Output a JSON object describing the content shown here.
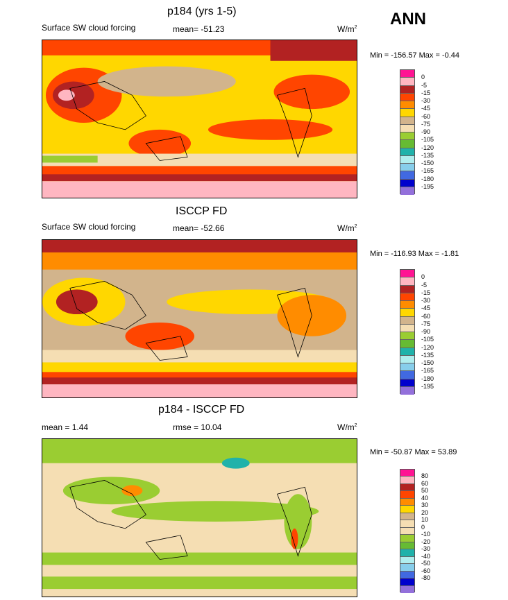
{
  "season": "ANN",
  "panels": [
    {
      "title": "p184 (yrs 1-5)",
      "left_label": "Surface SW cloud forcing",
      "center_label": "mean= -51.23",
      "units": "W/m",
      "units_sup": "2",
      "minmax": "Min = -156.57 Max =  -0.44",
      "legend": {
        "colors": [
          "#ff1493",
          "#ffb6c1",
          "#b22222",
          "#ff4500",
          "#ff8c00",
          "#ffd700",
          "#d2b48c",
          "#f5deb3",
          "#9acd32",
          "#66bb33",
          "#20b2aa",
          "#afeeee",
          "#87ceeb",
          "#4169e1",
          "#0000cd",
          "#9370db"
        ],
        "labels": [
          "0",
          "-5",
          "-15",
          "-30",
          "-45",
          "-60",
          "-75",
          "-90",
          "-105",
          "-120",
          "-135",
          "-150",
          "-165",
          "-180",
          "-195"
        ]
      }
    },
    {
      "title": "ISCCP FD",
      "left_label": "Surface SW cloud forcing",
      "center_label": "mean= -52.66",
      "units": "W/m",
      "units_sup": "2",
      "minmax": "Min = -116.93 Max =  -1.81",
      "legend": {
        "colors": [
          "#ff1493",
          "#ffb6c1",
          "#b22222",
          "#ff4500",
          "#ff8c00",
          "#ffd700",
          "#d2b48c",
          "#f5deb3",
          "#9acd32",
          "#66bb33",
          "#20b2aa",
          "#afeeee",
          "#87ceeb",
          "#4169e1",
          "#0000cd",
          "#9370db"
        ],
        "labels": [
          "0",
          "-5",
          "-15",
          "-30",
          "-45",
          "-60",
          "-75",
          "-90",
          "-105",
          "-120",
          "-135",
          "-150",
          "-165",
          "-180",
          "-195"
        ]
      }
    },
    {
      "title": "p184 - ISCCP FD",
      "left_label": "mean =   1.44",
      "center_label": "rmse =  10.04",
      "units": "W/m",
      "units_sup": "2",
      "minmax": "Min = -50.87 Max =  53.89",
      "legend": {
        "colors": [
          "#ff1493",
          "#ffb6c1",
          "#b22222",
          "#ff4500",
          "#ff8c00",
          "#ffd700",
          "#d2b48c",
          "#f5deb3",
          "#f5deb3",
          "#9acd32",
          "#66bb33",
          "#20b2aa",
          "#afeeee",
          "#87ceeb",
          "#4169e1",
          "#0000cd",
          "#9370db"
        ],
        "labels": [
          "80",
          "60",
          "50",
          "40",
          "30",
          "20",
          "10",
          "0",
          "-10",
          "-20",
          "-30",
          "-40",
          "-50",
          "-60",
          "-80"
        ]
      }
    }
  ]
}
